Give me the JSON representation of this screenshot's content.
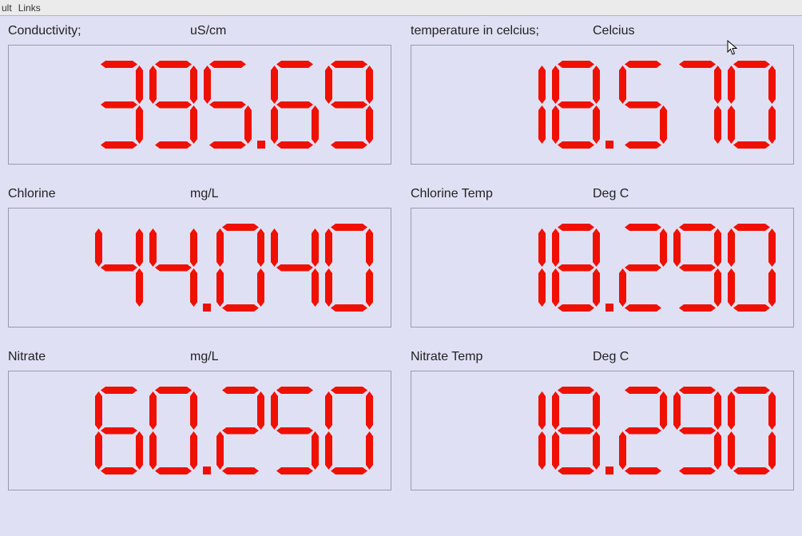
{
  "menu": {
    "item1": "ult",
    "item2": "Links"
  },
  "colors": {
    "digit": "#f01000",
    "background": "#e0e0f5",
    "border": "#9a9ab0"
  },
  "readings": [
    {
      "label": "Conductivity;",
      "unit": "uS/cm",
      "value": "395.69"
    },
    {
      "label": "temperature in celcius;",
      "unit": "Celcius",
      "value": "18.570"
    },
    {
      "label": "Chlorine",
      "unit": "mg/L",
      "value": "44.040"
    },
    {
      "label": "Chlorine Temp",
      "unit": "Deg C",
      "value": "18.290"
    },
    {
      "label": "Nitrate",
      "unit": "mg/L",
      "value": "60.250"
    },
    {
      "label": "Nitrate Temp",
      "unit": "Deg C",
      "value": "18.290"
    }
  ]
}
